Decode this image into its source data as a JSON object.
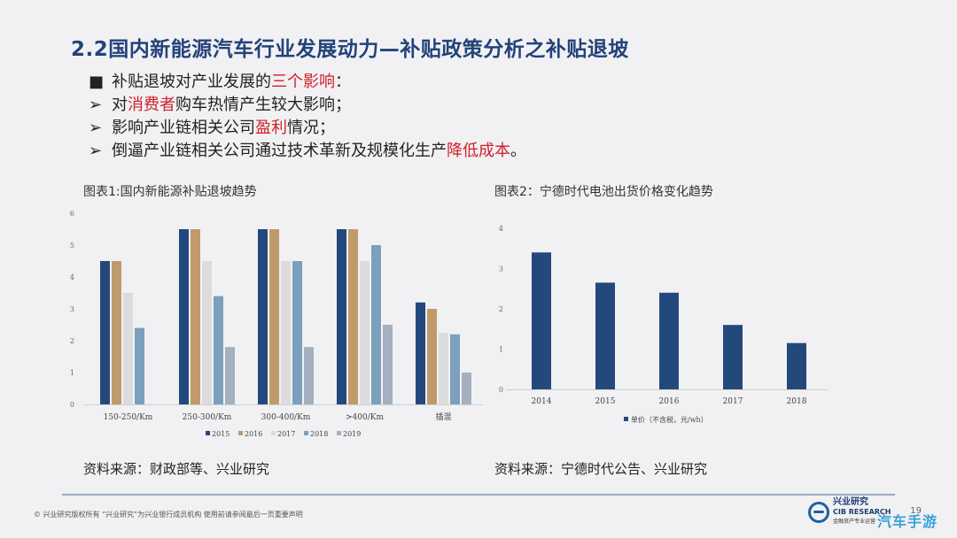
{
  "title": "2.2国内新能源汽车行业发展动力—补贴政策分析之补贴退坡",
  "bullets": {
    "intro": {
      "marker": "■",
      "before": "补贴退坡对产业发展的",
      "highlight": "三个影响",
      "after": "："
    },
    "item1": {
      "marker": "➢",
      "before": "对",
      "highlight": "消费者",
      "after": "购车热情产生较大影响；"
    },
    "item2": {
      "marker": "➢",
      "before": "影响产业链相关公司",
      "highlight": "盈利",
      "after": "情况；"
    },
    "item3": {
      "marker": "➢",
      "before": "倒逼产业链相关公司通过技术革新及规模化生产",
      "highlight": "降低成本",
      "after": "。"
    }
  },
  "figure1": {
    "title": "图表1:国内新能源补贴退坡趋势",
    "source": "资料来源：财政部等、兴业研究"
  },
  "figure2": {
    "title": "图表2：宁德时代电池出货价格变化趋势",
    "source": "资料来源：宁德时代公告、兴业研究"
  },
  "footer": {
    "text": "©  兴业研究版权所有      “兴业研究”为兴业银行成员机构    使用前请参阅最后一页重要声明",
    "page": "19",
    "logo_cn": "兴业研究",
    "logo_en": "CIB RESEARCH",
    "logo_sub": "金融资产专业运营",
    "watermark": "汽车手游"
  },
  "colors": {
    "title": "#23437a",
    "highlight": "#d0202a",
    "s2015": "#23497c",
    "s2016": "#c09a6b",
    "s2017": "#dcdcdc",
    "s2018": "#7c9fbe",
    "s2019": "#a4b0be",
    "bar2": "#23497c"
  },
  "chart_data": [
    {
      "type": "bar",
      "categories": [
        "150-250/Km",
        "250-300/Km",
        "300-400/Km",
        ">400/Km",
        "插混"
      ],
      "series": [
        {
          "name": "2015",
          "values": [
            4.5,
            5.5,
            5.5,
            5.5,
            3.2
          ]
        },
        {
          "name": "2016",
          "values": [
            4.5,
            5.5,
            5.5,
            5.5,
            3.0
          ]
        },
        {
          "name": "2017",
          "values": [
            3.5,
            4.5,
            4.5,
            4.5,
            2.25
          ]
        },
        {
          "name": "2018",
          "values": [
            2.4,
            3.4,
            4.5,
            5.0,
            2.2
          ]
        },
        {
          "name": "2019",
          "values": [
            0,
            1.8,
            1.8,
            2.5,
            1.0
          ]
        }
      ],
      "ylim": [
        0,
        6
      ],
      "yticks": [
        0,
        1,
        2,
        3,
        4,
        5,
        6
      ],
      "grid": false,
      "legend": "bottom"
    },
    {
      "type": "bar",
      "categories": [
        "2014",
        "2015",
        "2016",
        "2017",
        "2018"
      ],
      "series": [
        {
          "name": "单价（不含税，元/wh）",
          "values": [
            3.4,
            2.65,
            2.4,
            1.6,
            1.15
          ]
        }
      ],
      "ylim": [
        0,
        4
      ],
      "yticks": [
        0,
        1,
        2,
        3,
        4
      ],
      "grid": false,
      "legend": "bottom"
    }
  ]
}
